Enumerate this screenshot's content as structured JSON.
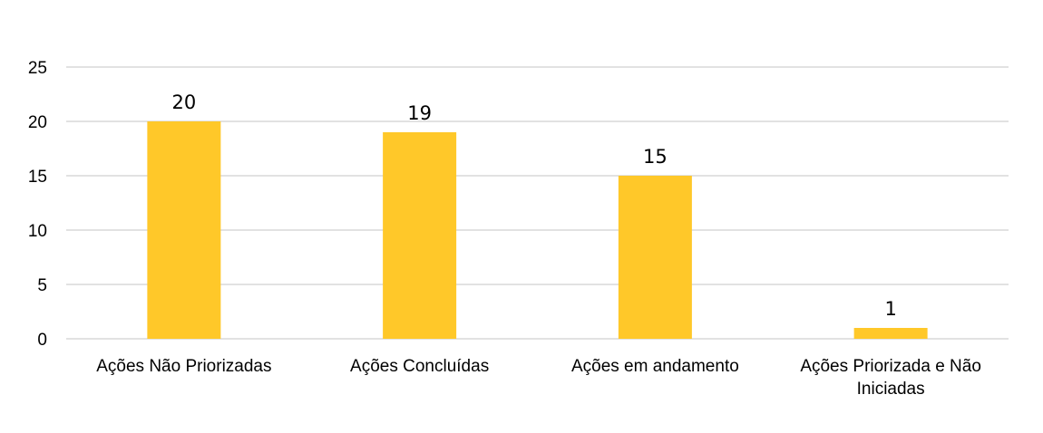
{
  "chart_data": {
    "type": "bar",
    "title": "",
    "xlabel": "",
    "ylabel": "",
    "categories": [
      [
        "Ações Não Priorizadas"
      ],
      [
        "Ações Concluídas"
      ],
      [
        "Ações em andamento"
      ],
      [
        "Ações Priorizada e Não",
        "Iniciadas"
      ]
    ],
    "values": [
      20,
      19,
      15,
      1
    ],
    "data_labels": [
      "20",
      "19",
      "15",
      "1"
    ],
    "yticks": [
      0,
      5,
      10,
      15,
      20,
      25
    ],
    "ylim": [
      0,
      25
    ],
    "grid": true,
    "legend": "none",
    "colors": {
      "bar": "#FFC829",
      "grid": "#D9D9D9",
      "text": "#000000"
    }
  }
}
